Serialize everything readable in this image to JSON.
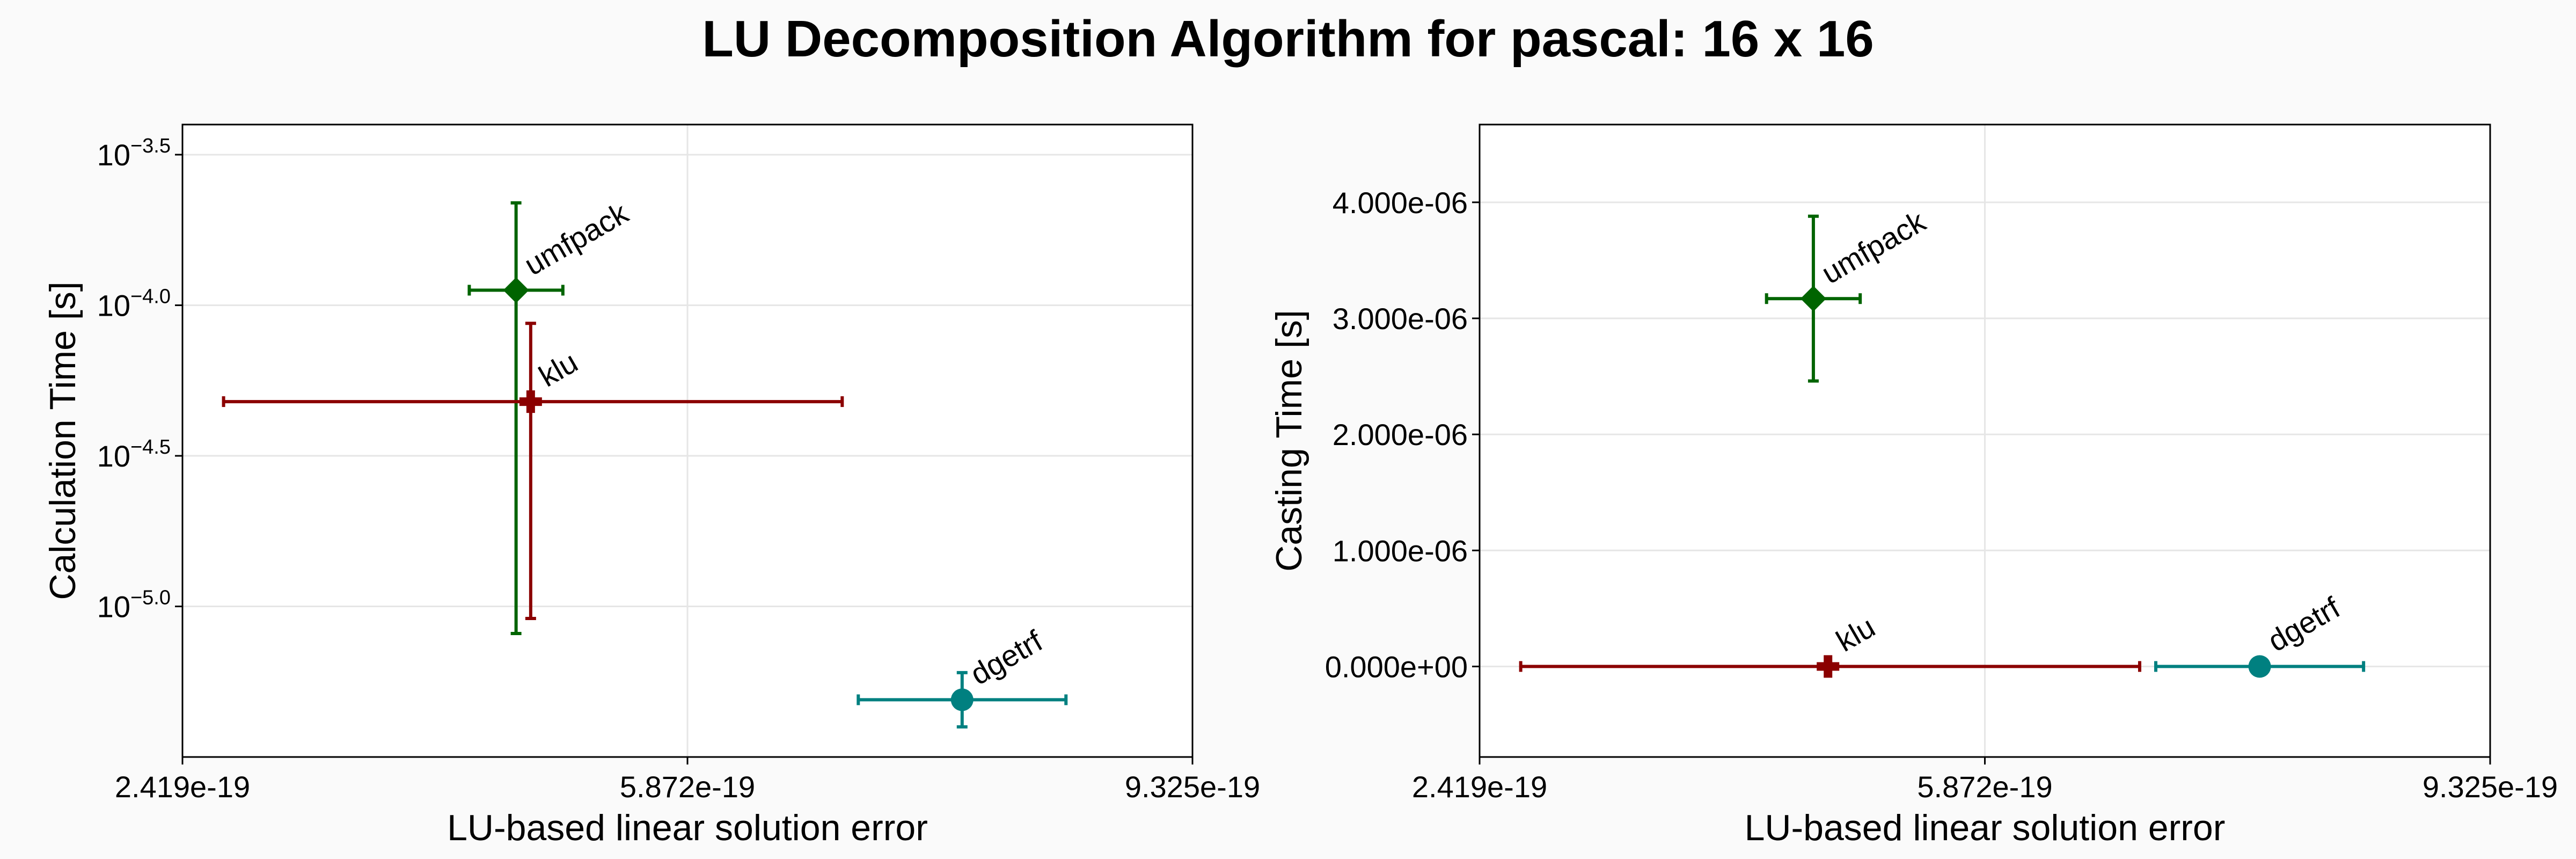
{
  "title": "LU Decomposition Algorithm for pascal: 16 x 16",
  "colors": {
    "umfpack": "#006400",
    "klu": "#8b0000",
    "dgetrf": "#008080",
    "grid": "#e6e6e6",
    "frame": "#000000"
  },
  "chart_data": [
    {
      "type": "scatter",
      "xlabel": "LU-based linear solution error",
      "ylabel": "Calculation Time [s]",
      "xlim": [
        2.419e-19,
        9.325e-19
      ],
      "x_ticks": [
        "2.419e-19",
        "5.872e-19",
        "9.325e-19"
      ],
      "x_tick_values": [
        2.419e-19,
        5.872e-19,
        9.325e-19
      ],
      "yscale": "log",
      "ylim_log10": [
        -5.5,
        -3.4
      ],
      "y_ticks": [
        {
          "base": "10",
          "exp": "−5.0",
          "value": -5.0
        },
        {
          "base": "10",
          "exp": "−4.5",
          "value": -4.5
        },
        {
          "base": "10",
          "exp": "−4.0",
          "value": -4.0
        },
        {
          "base": "10",
          "exp": "−3.5",
          "value": -3.5
        }
      ],
      "grid": true,
      "series": [
        {
          "name": "umfpack",
          "marker": "diamond",
          "color": "#006400",
          "x": 4.7e-19,
          "x_err": [
            4.38e-19,
            5.02e-19
          ],
          "y_log10": -3.95,
          "y_err_log10": [
            -5.09,
            -3.66
          ]
        },
        {
          "name": "klu",
          "marker": "cross",
          "color": "#8b0000",
          "x": 4.8e-19,
          "x_err": [
            2.7e-19,
            6.93e-19
          ],
          "y_log10": -4.32,
          "y_err_log10": [
            -5.04,
            -4.06
          ]
        },
        {
          "name": "dgetrf",
          "marker": "circle",
          "color": "#008080",
          "x": 7.75e-19,
          "x_err": [
            7.04e-19,
            8.46e-19
          ],
          "y_log10": -5.31,
          "y_err_log10": [
            -5.4,
            -5.22
          ]
        }
      ]
    },
    {
      "type": "scatter",
      "xlabel": "LU-based linear solution error",
      "ylabel": "Casting Time [s]",
      "xlim": [
        2.419e-19,
        9.325e-19
      ],
      "x_ticks": [
        "2.419e-19",
        "5.872e-19",
        "9.325e-19"
      ],
      "x_tick_values": [
        2.419e-19,
        5.872e-19,
        9.325e-19
      ],
      "ylim": [
        -7.8e-07,
        4.67e-06
      ],
      "y_ticks": [
        "0.000e+00",
        "1.000e-06",
        "2.000e-06",
        "3.000e-06",
        "4.000e-06"
      ],
      "y_tick_values": [
        0,
        1e-06,
        2e-06,
        3e-06,
        4e-06
      ],
      "grid": true,
      "series": [
        {
          "name": "umfpack",
          "marker": "diamond",
          "color": "#006400",
          "x": 4.7e-19,
          "x_err": [
            4.38e-19,
            5.02e-19
          ],
          "y": 3.17e-06,
          "y_err": [
            2.46e-06,
            3.88e-06
          ]
        },
        {
          "name": "klu",
          "marker": "cross",
          "color": "#8b0000",
          "x": 4.8e-19,
          "x_err": [
            2.7e-19,
            6.93e-19
          ],
          "y": 0.0,
          "y_err": [
            0.0,
            0.0
          ]
        },
        {
          "name": "dgetrf",
          "marker": "circle",
          "color": "#008080",
          "x": 7.75e-19,
          "x_err": [
            7.04e-19,
            8.46e-19
          ],
          "y": 0.0,
          "y_err": [
            0.0,
            0.0
          ]
        }
      ]
    }
  ]
}
